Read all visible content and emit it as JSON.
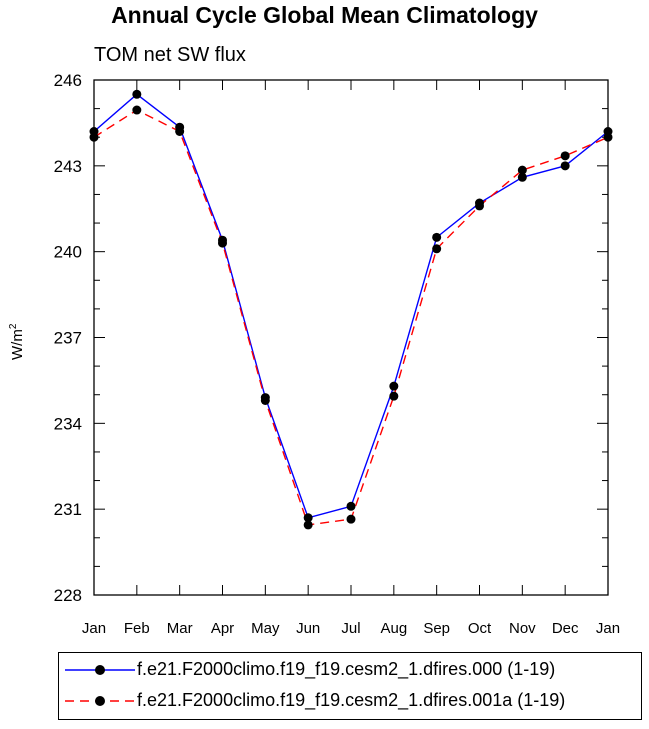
{
  "chart_data": {
    "type": "line",
    "title": "Annual Cycle Global Mean Climatology",
    "subtitle": "TOM net SW flux",
    "ylabel": "W/m",
    "ylabel_sup": "2",
    "xlabel": "",
    "categories": [
      "Jan",
      "Feb",
      "Mar",
      "Apr",
      "May",
      "Jun",
      "Jul",
      "Aug",
      "Sep",
      "Oct",
      "Nov",
      "Dec",
      "Jan"
    ],
    "ylim": [
      228,
      246
    ],
    "yticks": [
      "228",
      "231",
      "234",
      "237",
      "240",
      "243",
      "246"
    ],
    "yticks_values": [
      228,
      231,
      234,
      237,
      240,
      243,
      246
    ],
    "series": [
      {
        "name": "f.e21.F2000climo.f19_f19.cesm2_1.dfires.000 (1-19)",
        "color": "#0000ff",
        "dash": "solid",
        "values": [
          244.2,
          245.5,
          244.35,
          240.4,
          234.9,
          230.7,
          231.1,
          235.3,
          240.5,
          241.7,
          242.6,
          243.0,
          244.2
        ]
      },
      {
        "name": "f.e21.F2000climo.f19_f19.cesm2_1.dfires.001a (1-19)",
        "color": "#ff0000",
        "dash": "dashed",
        "values": [
          244.0,
          244.95,
          244.2,
          240.3,
          234.8,
          230.45,
          230.65,
          234.95,
          240.1,
          241.6,
          242.85,
          243.35,
          244.0
        ]
      }
    ]
  }
}
